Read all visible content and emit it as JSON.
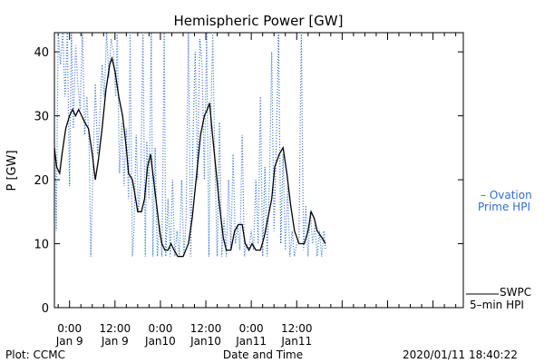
{
  "chart_data": {
    "type": "line",
    "title": "Hemispheric Power [GW]",
    "xlabel": "Date and Time",
    "ylabel": "P [GW]",
    "ylim": [
      0,
      43
    ],
    "xlim": [
      -4,
      104
    ],
    "yticks": [
      0,
      10,
      20,
      30,
      40
    ],
    "xticks": [
      {
        "x": 0,
        "time": "0:00",
        "date": "Jan 9"
      },
      {
        "x": 12,
        "time": "12:00",
        "date": "Jan 9"
      },
      {
        "x": 24,
        "time": "0:00",
        "date": "Jan10"
      },
      {
        "x": 36,
        "time": "12:00",
        "date": "Jan10"
      },
      {
        "x": 48,
        "time": "0:00",
        "date": "Jan11"
      },
      {
        "x": 60,
        "time": "12:00",
        "date": "Jan11"
      }
    ],
    "grid": false,
    "legend_placement": "right",
    "series": [
      {
        "name": "SWPC 5-min HPI",
        "color": "#000000",
        "style": "solid",
        "points": [
          [
            -4,
            25
          ],
          [
            -3.4,
            22
          ],
          [
            -2.6,
            21
          ],
          [
            -2,
            24
          ],
          [
            -1,
            28
          ],
          [
            0,
            30
          ],
          [
            0.8,
            31
          ],
          [
            1.6,
            30
          ],
          [
            2.4,
            31
          ],
          [
            3.2,
            30
          ],
          [
            4,
            29
          ],
          [
            5,
            28
          ],
          [
            6,
            24
          ],
          [
            6.8,
            20
          ],
          [
            7.6,
            23
          ],
          [
            8.6,
            28
          ],
          [
            9.6,
            34
          ],
          [
            10.6,
            38
          ],
          [
            11.2,
            39
          ],
          [
            12,
            37
          ],
          [
            13,
            33
          ],
          [
            14,
            30
          ],
          [
            15,
            25
          ],
          [
            15.6,
            21
          ],
          [
            16.6,
            20
          ],
          [
            17.2,
            18
          ],
          [
            18,
            15
          ],
          [
            19,
            15
          ],
          [
            19.8,
            17
          ],
          [
            20.6,
            22
          ],
          [
            21.4,
            24
          ],
          [
            22.2,
            20
          ],
          [
            23,
            16
          ],
          [
            23.8,
            12
          ],
          [
            24.4,
            10
          ],
          [
            25.2,
            9
          ],
          [
            26,
            9
          ],
          [
            26.8,
            10
          ],
          [
            27.6,
            9
          ],
          [
            28.6,
            8
          ],
          [
            30,
            8
          ],
          [
            31.4,
            10
          ],
          [
            32.4,
            14
          ],
          [
            33.6,
            21
          ],
          [
            34.6,
            27
          ],
          [
            35.6,
            30
          ],
          [
            36.4,
            31
          ],
          [
            37,
            32
          ],
          [
            37.6,
            28
          ],
          [
            38.6,
            22
          ],
          [
            39.6,
            16
          ],
          [
            40.6,
            11
          ],
          [
            41.4,
            9
          ],
          [
            42.6,
            9
          ],
          [
            43.6,
            12
          ],
          [
            44.6,
            13
          ],
          [
            45.6,
            13
          ],
          [
            46.4,
            10
          ],
          [
            47.4,
            9
          ],
          [
            48.2,
            10
          ],
          [
            49.2,
            9
          ],
          [
            50.4,
            9
          ],
          [
            51.4,
            11
          ],
          [
            52.4,
            14
          ],
          [
            53.4,
            17
          ],
          [
            54.2,
            22
          ],
          [
            55.4,
            24
          ],
          [
            56.4,
            25
          ],
          [
            57.4,
            21
          ],
          [
            58.4,
            16
          ],
          [
            59.4,
            12
          ],
          [
            60.6,
            10
          ],
          [
            62,
            10
          ],
          [
            63,
            12
          ],
          [
            63.8,
            15
          ],
          [
            64.6,
            14
          ],
          [
            65.4,
            12
          ],
          [
            66.6,
            11
          ],
          [
            67.6,
            10
          ]
        ]
      },
      {
        "name": "Ovation Prime HPI",
        "color": "#2f6fd0",
        "style": "dotted",
        "points": [
          [
            -4,
            30
          ],
          [
            -3.5,
            12
          ],
          [
            -3,
            43
          ],
          [
            -2.4,
            38
          ],
          [
            -1.8,
            43
          ],
          [
            -1.2,
            33
          ],
          [
            -0.6,
            43
          ],
          [
            0,
            19
          ],
          [
            0.5,
            43
          ],
          [
            1,
            28
          ],
          [
            1.6,
            41
          ],
          [
            2.2,
            35
          ],
          [
            2.8,
            31
          ],
          [
            3.4,
            43
          ],
          [
            4,
            27
          ],
          [
            4.6,
            33
          ],
          [
            5.2,
            25
          ],
          [
            5.6,
            8
          ],
          [
            6.2,
            22
          ],
          [
            6.8,
            35
          ],
          [
            7.4,
            24
          ],
          [
            8,
            30
          ],
          [
            8.6,
            38
          ],
          [
            9.2,
            33
          ],
          [
            9.8,
            43
          ],
          [
            10.4,
            36
          ],
          [
            11,
            42
          ],
          [
            11.6,
            40
          ],
          [
            12.2,
            33
          ],
          [
            12.6,
            43
          ],
          [
            13.2,
            21
          ],
          [
            13.8,
            29
          ],
          [
            14.4,
            19
          ],
          [
            15,
            28
          ],
          [
            15.6,
            17
          ],
          [
            16,
            43
          ],
          [
            16.6,
            8
          ],
          [
            17,
            12
          ],
          [
            17.6,
            27
          ],
          [
            18.2,
            15
          ],
          [
            18.8,
            20
          ],
          [
            19.4,
            43
          ],
          [
            20,
            8
          ],
          [
            20.4,
            26
          ],
          [
            21,
            17
          ],
          [
            21.6,
            43
          ],
          [
            22,
            8
          ],
          [
            22.6,
            25
          ],
          [
            23.2,
            8
          ],
          [
            23.8,
            13
          ],
          [
            24.4,
            8
          ],
          [
            25,
            43
          ],
          [
            25.4,
            8
          ],
          [
            26,
            17
          ],
          [
            26.6,
            8
          ],
          [
            27.2,
            20
          ],
          [
            27.8,
            8
          ],
          [
            28.4,
            12
          ],
          [
            29,
            8
          ],
          [
            29.6,
            20
          ],
          [
            30.2,
            8
          ],
          [
            30.8,
            14
          ],
          [
            31.4,
            43
          ],
          [
            32,
            8
          ],
          [
            32.6,
            26
          ],
          [
            33.2,
            40
          ],
          [
            33.8,
            20
          ],
          [
            34.4,
            42
          ],
          [
            35,
            38
          ],
          [
            35.6,
            20
          ],
          [
            36.2,
            43
          ],
          [
            36.8,
            8
          ],
          [
            37.2,
            26
          ],
          [
            37.8,
            43
          ],
          [
            38.4,
            22
          ],
          [
            39,
            8
          ],
          [
            39.6,
            29
          ],
          [
            40.2,
            8
          ],
          [
            40.8,
            14
          ],
          [
            41.4,
            8
          ],
          [
            42,
            20
          ],
          [
            42.6,
            9
          ],
          [
            43.2,
            24
          ],
          [
            43.8,
            10
          ],
          [
            44.4,
            13
          ],
          [
            45,
            9
          ],
          [
            45.6,
            27
          ],
          [
            46.2,
            8
          ],
          [
            46.8,
            10
          ],
          [
            47.4,
            9
          ],
          [
            48,
            12
          ],
          [
            48.6,
            9
          ],
          [
            49.2,
            20
          ],
          [
            49.8,
            10
          ],
          [
            50.4,
            33
          ],
          [
            51,
            8
          ],
          [
            51.6,
            22
          ],
          [
            52.2,
            8
          ],
          [
            52.8,
            20
          ],
          [
            53.4,
            40
          ],
          [
            54,
            12
          ],
          [
            54.6,
            25
          ],
          [
            55.2,
            43
          ],
          [
            55.8,
            10
          ],
          [
            56.4,
            24
          ],
          [
            57,
            9
          ],
          [
            57.6,
            19
          ],
          [
            58.2,
            8
          ],
          [
            58.8,
            12
          ],
          [
            59.4,
            8
          ],
          [
            60,
            10
          ],
          [
            60.6,
            11
          ],
          [
            61.2,
            43
          ],
          [
            61.8,
            9
          ],
          [
            62.4,
            16
          ],
          [
            63,
            8
          ],
          [
            63.6,
            15
          ],
          [
            64.2,
            10
          ],
          [
            64.8,
            13
          ],
          [
            65.4,
            8
          ],
          [
            66,
            12
          ],
          [
            66.6,
            8
          ],
          [
            67.2,
            12
          ],
          [
            67.6,
            9
          ]
        ]
      }
    ]
  },
  "legend": {
    "ovation_line1": "– Ovation",
    "ovation_line2": "Prime HPI",
    "swpc_line1": "SWPC",
    "swpc_line2": "5–min HPI"
  },
  "footer": {
    "left": "Plot: CCMC",
    "right": "2020/01/11 18:40:22"
  }
}
